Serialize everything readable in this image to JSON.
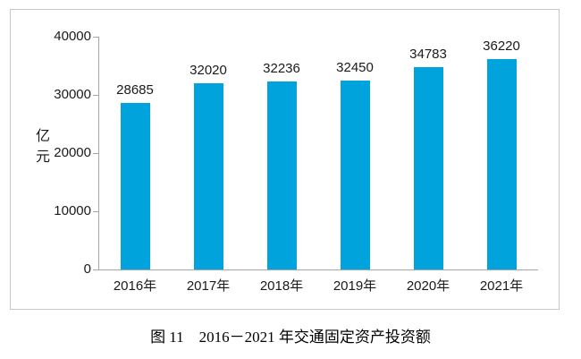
{
  "chart_data": {
    "type": "bar",
    "categories": [
      "2016年",
      "2017年",
      "2018年",
      "2019年",
      "2020年",
      "2021年"
    ],
    "values": [
      28685,
      32020,
      32236,
      32450,
      34783,
      36220
    ],
    "data_labels": [
      "28685",
      "32020",
      "32236",
      "32450",
      "34783",
      "36220"
    ],
    "title": "",
    "xlabel": "",
    "ylabel": "亿元",
    "ylim": [
      0,
      40000
    ],
    "yticks": [
      0,
      10000,
      20000,
      30000,
      40000
    ],
    "ytick_labels": [
      "0",
      "10000",
      "20000",
      "30000",
      "40000"
    ],
    "grid": false,
    "legend_position": "none",
    "bar_color": "#00a3dc",
    "axis_color": "#a6a6a6",
    "frame_border_color": "#c6c6c6"
  },
  "caption": "图 11　2016－2021 年交通固定资产投资额"
}
